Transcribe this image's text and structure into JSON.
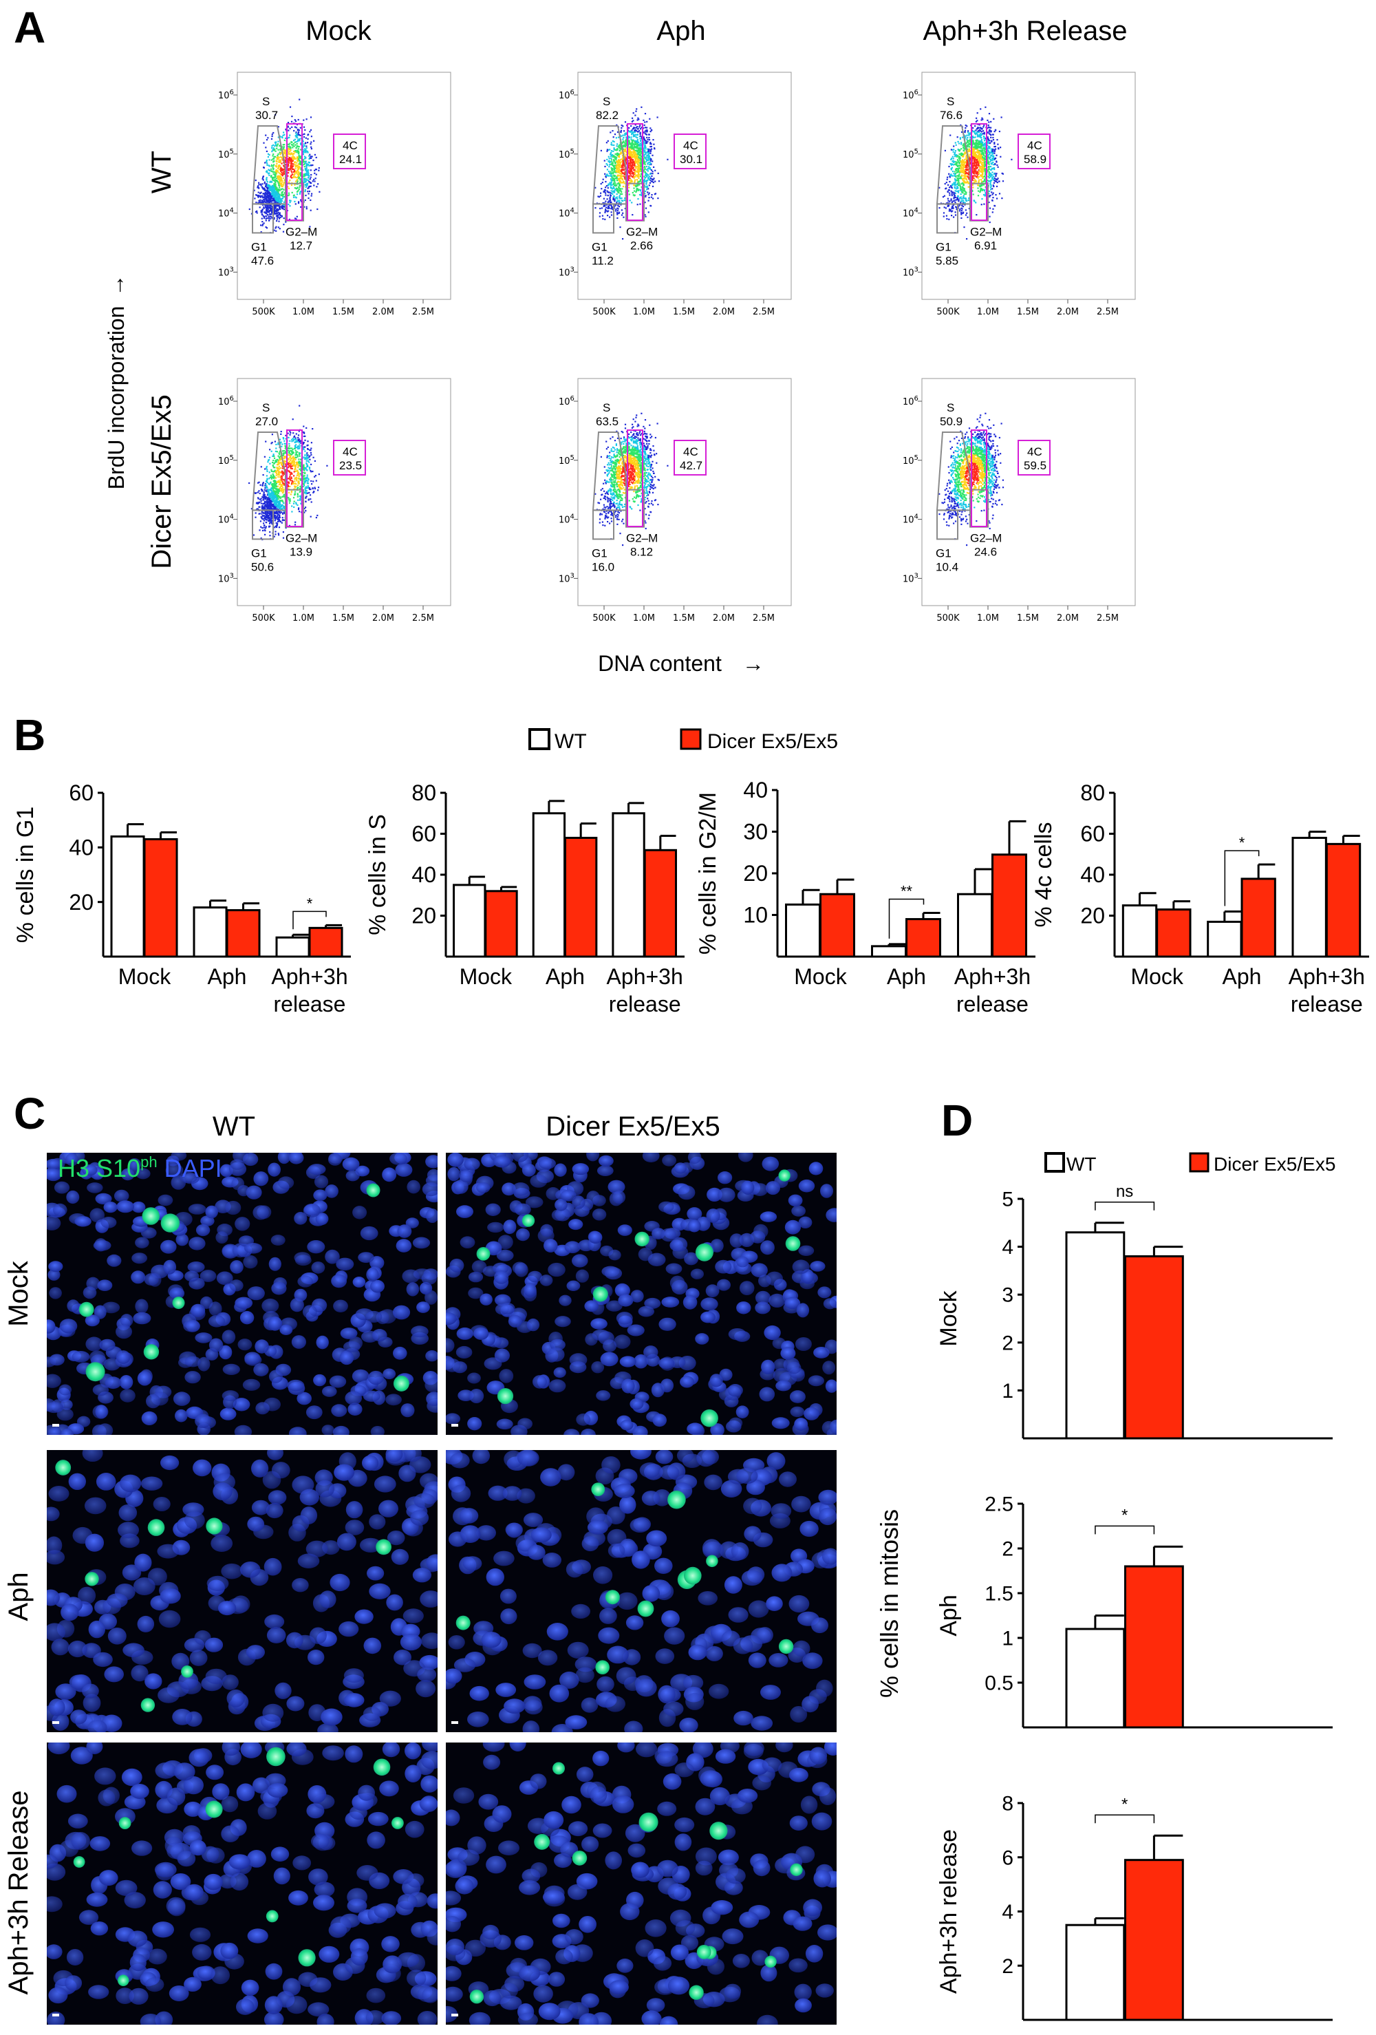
{
  "panels": {
    "a": "A",
    "b": "B",
    "c": "C",
    "d": "D"
  },
  "legend": {
    "wt": "WT",
    "mut": "Dicer Ex5/Ex5"
  },
  "colors": {
    "wt": "#ffffff",
    "mut": "#ff2a0a",
    "gate_gray": "#8a8a8a",
    "gate_magenta": "#d61fd6",
    "dapi": "#1f36b8",
    "h3": "#17d483"
  },
  "flow": {
    "columns": [
      "Mock",
      "Aph",
      "Aph+3h Release"
    ],
    "rows": [
      "WT",
      "Dicer Ex5/Ex5"
    ],
    "ylabel": "BrdU incorporation",
    "xlabel": "DNA content",
    "arrow": "→",
    "ytick_base": "10",
    "ytick_exps": [
      "3",
      "4",
      "5",
      "6"
    ],
    "xticks": [
      "500K",
      "1.0M",
      "1.5M",
      "2.0M",
      "2.5M"
    ],
    "gate_names": {
      "s": "S",
      "g1": "G1",
      "g2m": "G2–M",
      "c4": "4C"
    },
    "plots": [
      {
        "s": "30.7",
        "g1": "47.6",
        "g2m": "12.7",
        "c4": "24.1"
      },
      {
        "s": "82.2",
        "g1": "11.2",
        "g2m": "2.66",
        "c4": "30.1"
      },
      {
        "s": "76.6",
        "g1": "5.85",
        "g2m": "6.91",
        "c4": "58.9"
      },
      {
        "s": "27.0",
        "g1": "50.6",
        "g2m": "13.9",
        "c4": "23.5"
      },
      {
        "s": "63.5",
        "g1": "16.0",
        "g2m": "8.12",
        "c4": "42.7"
      },
      {
        "s": "50.9",
        "g1": "10.4",
        "g2m": "24.6",
        "c4": "59.5"
      }
    ]
  },
  "chart_data": [
    {
      "type": "bar",
      "panel": "B",
      "categories": [
        "Mock",
        "Aph",
        "Aph+3h release"
      ],
      "ylabel": "% cells in G1",
      "ylim": [
        0,
        60
      ],
      "yticks": [
        20,
        40,
        60
      ],
      "series": [
        {
          "name": "WT",
          "values": [
            44,
            18,
            7
          ],
          "errors": [
            4.5,
            2.5,
            1
          ]
        },
        {
          "name": "Dicer Ex5/Ex5",
          "values": [
            43,
            17,
            10.5
          ],
          "errors": [
            2.5,
            2.5,
            1
          ]
        }
      ],
      "sig": [
        {
          "cat": 2,
          "label": "*"
        }
      ]
    },
    {
      "type": "bar",
      "panel": "B",
      "categories": [
        "Mock",
        "Aph",
        "Aph+3h release"
      ],
      "ylabel": "% cells in S",
      "ylim": [
        0,
        80
      ],
      "yticks": [
        20,
        40,
        60,
        80
      ],
      "series": [
        {
          "name": "WT",
          "values": [
            35,
            70,
            70
          ],
          "errors": [
            4,
            6,
            5
          ]
        },
        {
          "name": "Dicer Ex5/Ex5",
          "values": [
            32,
            58,
            52
          ],
          "errors": [
            2,
            7,
            7
          ]
        }
      ],
      "sig": []
    },
    {
      "type": "bar",
      "panel": "B",
      "categories": [
        "Mock",
        "Aph",
        "Aph+3h release"
      ],
      "ylabel": "% cells in G2/M",
      "ylim": [
        0,
        40
      ],
      "yticks": [
        10,
        20,
        30,
        40
      ],
      "series": [
        {
          "name": "WT",
          "values": [
            12.5,
            2.5,
            15
          ],
          "errors": [
            3.5,
            0.5,
            6
          ]
        },
        {
          "name": "Dicer Ex5/Ex5",
          "values": [
            15,
            9,
            24.5
          ],
          "errors": [
            3.5,
            1.5,
            8
          ]
        }
      ],
      "sig": [
        {
          "cat": 1,
          "label": "**"
        }
      ]
    },
    {
      "type": "bar",
      "panel": "B",
      "categories": [
        "Mock",
        "Aph",
        "Aph+3h release"
      ],
      "ylabel": "% 4c cells",
      "ylim": [
        0,
        80
      ],
      "yticks": [
        20,
        40,
        60,
        80
      ],
      "series": [
        {
          "name": "WT",
          "values": [
            25,
            17,
            58
          ],
          "errors": [
            6,
            5,
            3
          ]
        },
        {
          "name": "Dicer Ex5/Ex5",
          "values": [
            23,
            38,
            55
          ],
          "errors": [
            4,
            7,
            4
          ]
        }
      ],
      "sig": [
        {
          "cat": 1,
          "label": "*"
        }
      ]
    },
    {
      "type": "bar",
      "panel": "D",
      "rowlabel": "Mock",
      "ylim": [
        0,
        5
      ],
      "yticks": [
        1,
        2,
        3,
        4,
        5
      ],
      "ytick_labels": [
        "1",
        "2",
        "3",
        "4",
        "5"
      ],
      "series": [
        {
          "name": "WT",
          "values": [
            4.3
          ],
          "errors": [
            0.2
          ]
        },
        {
          "name": "Dicer Ex5/Ex5",
          "values": [
            3.8
          ],
          "errors": [
            0.2
          ]
        }
      ],
      "sig": "ns"
    },
    {
      "type": "bar",
      "panel": "D",
      "rowlabel": "Aph",
      "ylim": [
        0,
        2.5
      ],
      "yticks": [
        0.5,
        1,
        1.5,
        2,
        2.5
      ],
      "ytick_labels": [
        "0.5",
        "1",
        "1.5",
        "2",
        "2.5"
      ],
      "series": [
        {
          "name": "WT",
          "values": [
            1.1
          ],
          "errors": [
            0.15
          ]
        },
        {
          "name": "Dicer Ex5/Ex5",
          "values": [
            1.8
          ],
          "errors": [
            0.22
          ]
        }
      ],
      "sig": "*"
    },
    {
      "type": "bar",
      "panel": "D",
      "rowlabel": "Aph+3h release",
      "ylim": [
        0,
        8
      ],
      "yticks": [
        2,
        4,
        6,
        8
      ],
      "ytick_labels": [
        "2",
        "4",
        "6",
        "8"
      ],
      "series": [
        {
          "name": "WT",
          "values": [
            3.5
          ],
          "errors": [
            0.25
          ]
        },
        {
          "name": "Dicer Ex5/Ex5",
          "values": [
            5.9
          ],
          "errors": [
            0.9
          ]
        }
      ],
      "sig": "*"
    }
  ],
  "d_ylabel": "% cells in mitosis",
  "micro": {
    "columns": [
      "WT",
      "Dicer Ex5/Ex5"
    ],
    "rows": [
      "Mock",
      "Aph",
      "Aph+3h Release"
    ],
    "stain_h3": "H3 S10",
    "stain_sup": "ph",
    "stain_dapi": " DAPI"
  }
}
